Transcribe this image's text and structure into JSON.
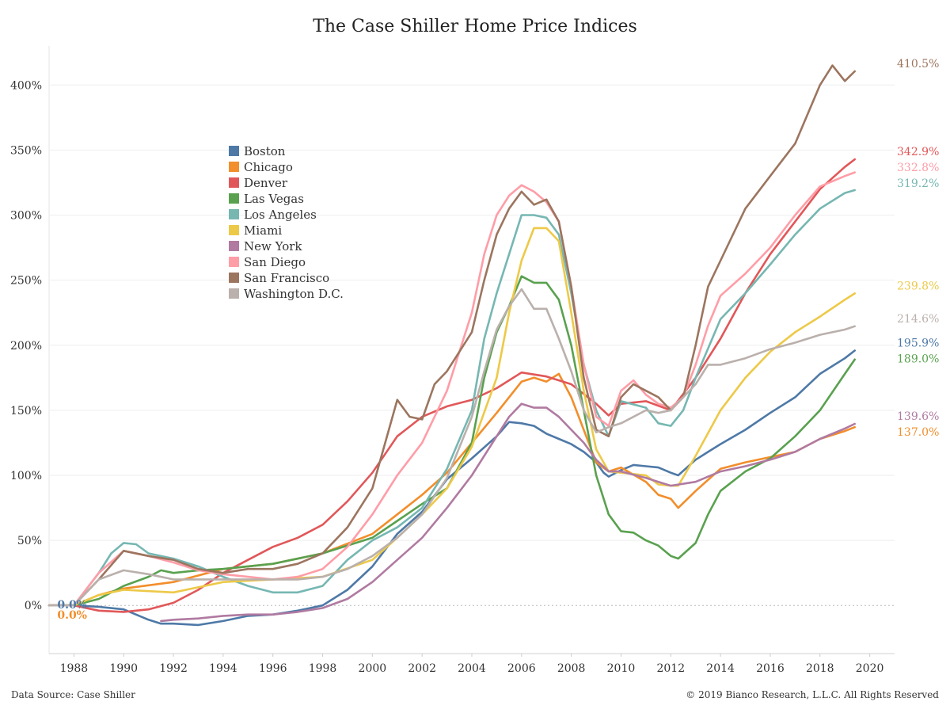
{
  "footer": {
    "source": "Data Source: Case Shiller",
    "copyright": "© 2019 Bianco Research, L.L.C. All Rights Reserved"
  },
  "chart_data": {
    "type": "line",
    "title": "The Case Shiller Home Price Indices",
    "xlabel": "",
    "ylabel": "",
    "xlim": [
      1987,
      2021
    ],
    "ylim": [
      -37,
      430
    ],
    "x_ticks": [
      1988,
      1990,
      1992,
      1994,
      1996,
      1998,
      2000,
      2002,
      2004,
      2006,
      2008,
      2010,
      2012,
      2014,
      2016,
      2018,
      2020
    ],
    "y_ticks": [
      0,
      50,
      100,
      150,
      200,
      250,
      300,
      350,
      400
    ],
    "y_tick_labels": [
      "0%",
      "50%",
      "100%",
      "150%",
      "200%",
      "250%",
      "300%",
      "350%",
      "400%"
    ],
    "grid": "horizontal",
    "legend_position": "upper-left",
    "start_labels": [
      {
        "text": "0.0%",
        "color": "#4e79a7"
      },
      {
        "text": "0.0%",
        "color": "#f28e2b"
      }
    ],
    "series": [
      {
        "name": "Boston",
        "color": "#4e79a7",
        "end_label": "195.9%",
        "x": [
          1987,
          1988,
          1989,
          1990,
          1991,
          1991.5,
          1992,
          1993,
          1994,
          1995,
          1996,
          1997,
          1998,
          1999,
          2000,
          2001,
          2002,
          2003,
          2004,
          2005,
          2005.5,
          2006,
          2006.5,
          2007,
          2007.5,
          2008,
          2008.5,
          2009,
          2009.3,
          2009.5,
          2010,
          2010.5,
          2011,
          2011.5,
          2012,
          2012.3,
          2013,
          2013.5,
          2014,
          2015,
          2016,
          2017,
          2018,
          2019,
          2019.4
        ],
        "y": [
          0,
          0,
          -1,
          -3,
          -11,
          -14,
          -14,
          -15,
          -12,
          -8,
          -7,
          -4,
          0,
          12,
          30,
          55,
          72,
          97,
          113,
          130,
          141,
          140,
          138,
          132,
          128,
          124,
          118,
          110,
          102,
          99,
          104,
          108,
          107,
          106,
          102,
          100,
          112,
          118,
          124,
          135,
          148,
          160,
          178,
          190,
          195.9
        ]
      },
      {
        "name": "Chicago",
        "color": "#f28e2b",
        "end_label": "137.0%",
        "x": [
          1987,
          1988,
          1989,
          1990,
          1992,
          1994,
          1996,
          1998,
          2000,
          2001,
          2002,
          2003,
          2004,
          2005,
          2006,
          2006.5,
          2007,
          2007.5,
          2008,
          2009,
          2009.5,
          2010,
          2011,
          2011.5,
          2012,
          2012.3,
          2013,
          2014,
          2015,
          2016,
          2017,
          2018,
          2019,
          2019.4
        ],
        "y": [
          0,
          0,
          8,
          13,
          18,
          28,
          32,
          40,
          55,
          70,
          85,
          102,
          125,
          148,
          172,
          175,
          172,
          178,
          160,
          110,
          103,
          106,
          95,
          85,
          82,
          75,
          88,
          105,
          110,
          114,
          118,
          128,
          134,
          137
        ]
      },
      {
        "name": "Denver",
        "color": "#e15759",
        "end_label": "342.9%",
        "x": [
          1987,
          1988,
          1989,
          1990,
          1991,
          1992,
          1993,
          1994,
          1995,
          1996,
          1997,
          1998,
          1999,
          2000,
          2001,
          2002,
          2003,
          2004,
          2005,
          2006,
          2007,
          2008,
          2009,
          2009.5,
          2010,
          2011,
          2012,
          2013,
          2014,
          2015,
          2016,
          2017,
          2018,
          2019,
          2019.4
        ],
        "y": [
          0,
          0,
          -4,
          -5,
          -3,
          2,
          12,
          25,
          35,
          45,
          52,
          62,
          80,
          102,
          130,
          145,
          153,
          158,
          167,
          179,
          176,
          170,
          155,
          146,
          155,
          157,
          150,
          175,
          205,
          240,
          270,
          295,
          320,
          337,
          342.9
        ]
      },
      {
        "name": "Las Vegas",
        "color": "#59a14f",
        "end_label": "189.0%",
        "x": [
          1987,
          1988,
          1989,
          1990,
          1991,
          1991.5,
          1992,
          1993,
          1994,
          1996,
          1998,
          2000,
          2001,
          2002,
          2003,
          2004,
          2004.5,
          2005,
          2005.5,
          2006,
          2006.5,
          2007,
          2007.5,
          2008,
          2008.5,
          2009,
          2009.5,
          2010,
          2010.5,
          2011,
          2011.5,
          2012,
          2012.3,
          2013,
          2013.5,
          2014,
          2015,
          2016,
          2017,
          2018,
          2019,
          2019.4
        ],
        "y": [
          0,
          0,
          5,
          15,
          22,
          27,
          25,
          27,
          28,
          32,
          40,
          52,
          65,
          78,
          90,
          125,
          175,
          210,
          230,
          253,
          248,
          248,
          235,
          200,
          150,
          100,
          70,
          57,
          56,
          50,
          46,
          38,
          36,
          48,
          70,
          88,
          103,
          113,
          130,
          150,
          178,
          189
        ]
      },
      {
        "name": "Los Angeles",
        "color": "#76b7b2",
        "end_label": "319.2%",
        "x": [
          1987,
          1988,
          1989,
          1989.5,
          1990,
          1990.5,
          1991,
          1992,
          1993,
          1994,
          1995,
          1996,
          1997,
          1998,
          1999,
          2000,
          2001,
          2002,
          2003,
          2004,
          2004.5,
          2005,
          2005.5,
          2006,
          2006.5,
          2007,
          2007.5,
          2008,
          2008.5,
          2009,
          2009.5,
          2010,
          2011,
          2011.5,
          2012,
          2012.5,
          2013,
          2014,
          2015,
          2016,
          2017,
          2018,
          2019,
          2019.4
        ],
        "y": [
          0,
          0,
          25,
          40,
          48,
          47,
          40,
          36,
          30,
          22,
          15,
          10,
          10,
          15,
          35,
          50,
          60,
          75,
          105,
          150,
          205,
          240,
          270,
          300,
          300,
          298,
          285,
          240,
          185,
          150,
          130,
          157,
          152,
          140,
          138,
          150,
          175,
          220,
          240,
          262,
          285,
          305,
          317,
          319.2
        ]
      },
      {
        "name": "Miami",
        "color": "#edc948",
        "end_label": "239.8%",
        "x": [
          1987,
          1988,
          1989,
          1990,
          1992,
          1994,
          1996,
          1998,
          2000,
          2001,
          2002,
          2003,
          2004,
          2005,
          2005.5,
          2006,
          2006.5,
          2007,
          2007.5,
          2008,
          2008.5,
          2009,
          2009.5,
          2010,
          2011,
          2011.5,
          2012,
          2012.3,
          2013,
          2014,
          2015,
          2016,
          2017,
          2018,
          2019,
          2019.4
        ],
        "y": [
          0,
          0,
          8,
          12,
          10,
          18,
          20,
          22,
          35,
          52,
          70,
          90,
          122,
          175,
          225,
          265,
          290,
          290,
          280,
          225,
          165,
          120,
          103,
          102,
          100,
          93,
          92,
          92,
          115,
          150,
          175,
          195,
          210,
          222,
          235,
          239.8
        ]
      },
      {
        "name": "New York",
        "color": "#b07aa1",
        "end_label": "139.6%",
        "x": [
          1991.5,
          1992,
          1993,
          1994,
          1995,
          1996,
          1997,
          1998,
          1999,
          2000,
          2001,
          2002,
          2003,
          2004,
          2005,
          2005.5,
          2006,
          2006.5,
          2007,
          2007.5,
          2008,
          2008.5,
          2009,
          2009.5,
          2010,
          2011,
          2011.5,
          2012,
          2013,
          2014,
          2015,
          2016,
          2017,
          2018,
          2019,
          2019.4
        ],
        "y": [
          -12,
          -11,
          -10,
          -8,
          -7,
          -7,
          -5,
          -2,
          5,
          18,
          35,
          52,
          75,
          100,
          130,
          145,
          155,
          152,
          152,
          145,
          135,
          125,
          112,
          103,
          103,
          98,
          95,
          92,
          95,
          103,
          107,
          112,
          118,
          128,
          136,
          139.6
        ]
      },
      {
        "name": "San Diego",
        "color": "#ff9da7",
        "end_label": "332.8%",
        "x": [
          1987,
          1988,
          1989,
          1990,
          1991,
          1992,
          1993,
          1994,
          1995,
          1996,
          1997,
          1998,
          1999,
          2000,
          2001,
          2002,
          2003,
          2004,
          2004.5,
          2005,
          2005.5,
          2006,
          2006.5,
          2007,
          2007.5,
          2008,
          2008.5,
          2009,
          2009.5,
          2010,
          2010.5,
          2011,
          2011.5,
          2012,
          2012.5,
          2013,
          2013.5,
          2014,
          2015,
          2016,
          2017,
          2018,
          2019,
          2019.4
        ],
        "y": [
          0,
          0,
          25,
          42,
          38,
          33,
          27,
          24,
          22,
          20,
          22,
          28,
          45,
          70,
          100,
          125,
          165,
          225,
          270,
          300,
          315,
          323,
          318,
          310,
          295,
          245,
          185,
          145,
          138,
          165,
          173,
          162,
          155,
          152,
          160,
          185,
          215,
          238,
          255,
          275,
          300,
          322,
          330,
          332.8
        ]
      },
      {
        "name": "San Francisco",
        "color": "#9c755f",
        "end_label": "410.5%",
        "x": [
          1987,
          1988,
          1989,
          1990,
          1991,
          1992,
          1993,
          1994,
          1995,
          1996,
          1997,
          1998,
          1999,
          2000,
          2001,
          2001.5,
          2002,
          2002.5,
          2003,
          2004,
          2004.5,
          2005,
          2005.5,
          2006,
          2006.5,
          2007,
          2007.5,
          2008,
          2008.5,
          2009,
          2009.5,
          2010,
          2010.5,
          2011,
          2011.5,
          2012,
          2012.5,
          2013,
          2013.5,
          2014,
          2015,
          2016,
          2017,
          2018,
          2018.5,
          2019,
          2019.4
        ],
        "y": [
          0,
          0,
          20,
          42,
          38,
          35,
          28,
          25,
          28,
          28,
          32,
          40,
          60,
          90,
          158,
          145,
          143,
          170,
          180,
          210,
          250,
          285,
          305,
          318,
          308,
          312,
          295,
          245,
          175,
          135,
          130,
          160,
          170,
          165,
          160,
          150,
          160,
          200,
          245,
          265,
          305,
          330,
          355,
          400,
          415,
          403,
          410.5
        ]
      },
      {
        "name": "Washington D.C.",
        "color": "#bab0ac",
        "end_label": "214.6%",
        "x": [
          1987,
          1988,
          1989,
          1990,
          1991,
          1992,
          1993,
          1994,
          1995,
          1996,
          1997,
          1998,
          1999,
          2000,
          2001,
          2002,
          2003,
          2004,
          2004.5,
          2005,
          2005.5,
          2006,
          2006.5,
          2007,
          2007.5,
          2008,
          2008.5,
          2009,
          2009.5,
          2010,
          2011,
          2011.5,
          2012,
          2013,
          2013.5,
          2014,
          2015,
          2016,
          2017,
          2018,
          2019,
          2019.4
        ],
        "y": [
          0,
          0,
          20,
          27,
          24,
          20,
          20,
          20,
          20,
          20,
          20,
          22,
          28,
          38,
          52,
          70,
          98,
          145,
          180,
          212,
          230,
          243,
          228,
          228,
          205,
          180,
          150,
          133,
          137,
          140,
          150,
          148,
          150,
          170,
          185,
          185,
          190,
          197,
          202,
          208,
          212,
          214.6
        ]
      }
    ]
  }
}
